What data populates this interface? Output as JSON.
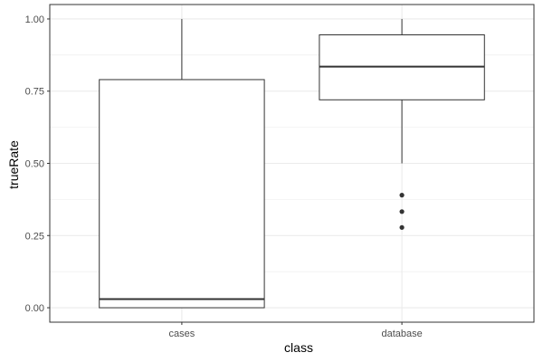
{
  "chart_data": {
    "type": "boxplot",
    "xlabel": "class",
    "ylabel": "trueRate",
    "ylim": [
      -0.05,
      1.05
    ],
    "yticks": [
      0,
      0.25,
      0.5,
      0.75,
      1
    ],
    "ytick_labels": [
      "0.00",
      "0.25",
      "0.50",
      "0.75",
      "1.00"
    ],
    "grid": true,
    "categories": [
      "cases",
      "database"
    ],
    "boxes": [
      {
        "name": "cases",
        "whisker_low": 0.0,
        "q1": 0.0,
        "median": 0.03,
        "q3": 0.79,
        "whisker_high": 1.0,
        "outliers": []
      },
      {
        "name": "database",
        "whisker_low": 0.5,
        "q1": 0.72,
        "median": 0.835,
        "q3": 0.945,
        "whisker_high": 1.0,
        "outliers": [
          0.39,
          0.333,
          0.278
        ]
      }
    ],
    "colors": {
      "panel_border": "#333333",
      "grid": "#ebebeb",
      "box_line": "#333333",
      "box_fill": "#ffffff",
      "outlier": "#333333"
    }
  }
}
